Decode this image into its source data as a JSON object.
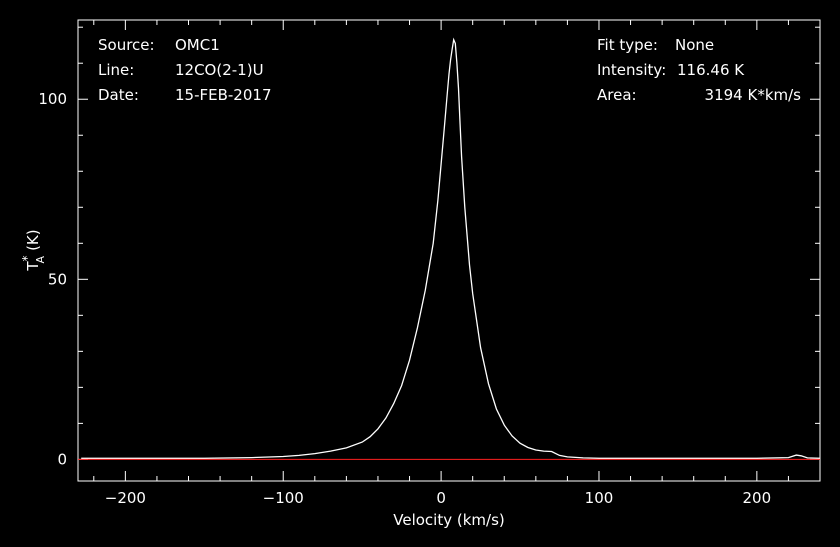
{
  "info": {
    "source_label": "Source:",
    "source_value": "OMC1",
    "line_label": "Line:",
    "line_value": "12CO(2-1)U",
    "date_label": "Date:",
    "date_value": "15-FEB-2017",
    "fit_label": "Fit type:",
    "fit_value": "None",
    "intensity_label": "Intensity:",
    "intensity_value": "116.46 K",
    "area_label": "Area:",
    "area_value": "3194 K*km/s"
  },
  "chart_data": {
    "type": "line",
    "title": "",
    "xlabel": "Velocity (km/s)",
    "ylabel_base": "T",
    "ylabel_sup": "*",
    "ylabel_sub": "A",
    "ylabel_unit": "(K)",
    "xlim": [
      -230,
      240
    ],
    "ylim": [
      -6,
      122
    ],
    "x_ticks": [
      -200,
      -100,
      0,
      100,
      200
    ],
    "x_tick_labels": [
      "−200",
      "−100",
      "0",
      "100",
      "200"
    ],
    "y_ticks": [
      0,
      50,
      100
    ],
    "y_tick_labels": [
      "0",
      "50",
      "100"
    ],
    "grid": false,
    "background": "#000000",
    "axis_color": "#ffffff",
    "series": [
      {
        "color": "#ffffff",
        "x": [
          -228,
          -200,
          -150,
          -120,
          -100,
          -90,
          -80,
          -70,
          -60,
          -50,
          -45,
          -40,
          -35,
          -30,
          -25,
          -20,
          -15,
          -10,
          -5,
          -2,
          0,
          2,
          4,
          5,
          6,
          7,
          8,
          9,
          10,
          11,
          12,
          13,
          15,
          18,
          20,
          25,
          30,
          35,
          40,
          45,
          50,
          55,
          60,
          65,
          70,
          75,
          80,
          90,
          100,
          120,
          150,
          200,
          220,
          225,
          228,
          232,
          240
        ],
        "y": [
          0.3,
          0.3,
          0.3,
          0.5,
          0.8,
          1.1,
          1.6,
          2.3,
          3.2,
          4.8,
          6.3,
          8.5,
          11.5,
          15.5,
          20.5,
          27.5,
          36.5,
          47.0,
          60.0,
          72.0,
          82.0,
          92.0,
          102.0,
          107.0,
          111.0,
          114.0,
          116.5,
          115.5,
          110.0,
          103.0,
          93.0,
          84.0,
          70.0,
          54.0,
          46.0,
          31.0,
          21.0,
          14.0,
          9.5,
          6.5,
          4.5,
          3.3,
          2.6,
          2.3,
          2.2,
          1.1,
          0.7,
          0.4,
          0.3,
          0.3,
          0.3,
          0.3,
          0.5,
          1.2,
          1.0,
          0.4,
          0.3
        ]
      },
      {
        "color": "#ff2020",
        "x": [
          -230,
          240
        ],
        "y": [
          0,
          0
        ]
      }
    ]
  }
}
